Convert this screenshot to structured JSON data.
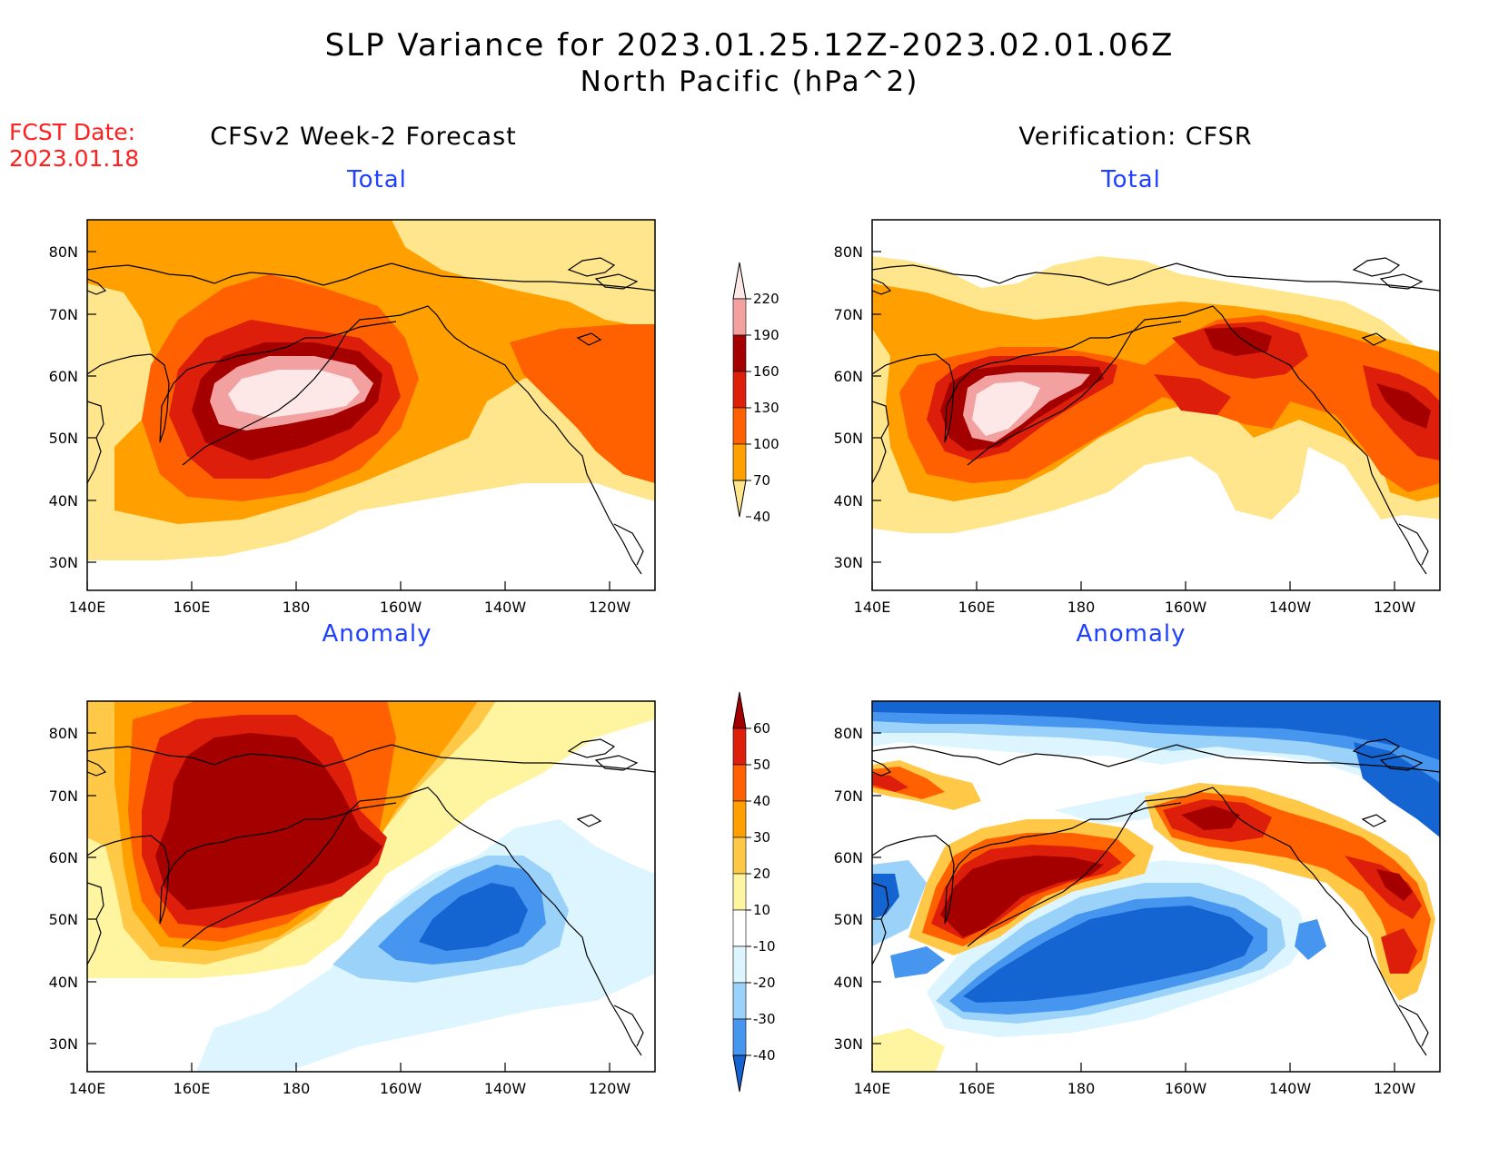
{
  "header": {
    "title_line1": "SLP Variance for 2023.01.25.12Z-2023.02.01.06Z",
    "title_line2": "North Pacific (hPa^2)",
    "fcst_label": "FCST Date:",
    "fcst_date": "2023.01.18"
  },
  "columns": {
    "left_title": "CFSv2 Week-2 Forecast",
    "right_title": "Verification: CFSR"
  },
  "panels": {
    "total_label": "Total",
    "anomaly_label": "Anomaly"
  },
  "axes": {
    "x_ticks": [
      "140E",
      "160E",
      "180",
      "160W",
      "140W",
      "120W"
    ],
    "y_ticks": [
      "80N",
      "70N",
      "60N",
      "50N",
      "40N",
      "30N"
    ]
  },
  "colorbar_total": {
    "levels": [
      "220",
      "190",
      "160",
      "130",
      "100",
      "70",
      "40"
    ],
    "colors": [
      "#fde7e7",
      "#f2a0a0",
      "#a50000",
      "#dc1e0a",
      "#ff6000",
      "#ffa000",
      "#ffe68c"
    ]
  },
  "colorbar_anomaly": {
    "levels": [
      "60",
      "50",
      "40",
      "30",
      "20",
      "10",
      "-10",
      "-20",
      "-30",
      "-40"
    ],
    "colors": [
      "#a50000",
      "#dc1e0a",
      "#ff6000",
      "#ffa000",
      "#ffc846",
      "#fff5a0",
      "#ffffff",
      "#dcf5ff",
      "#9bd2fa",
      "#4696f0",
      "#1464d2"
    ]
  }
}
